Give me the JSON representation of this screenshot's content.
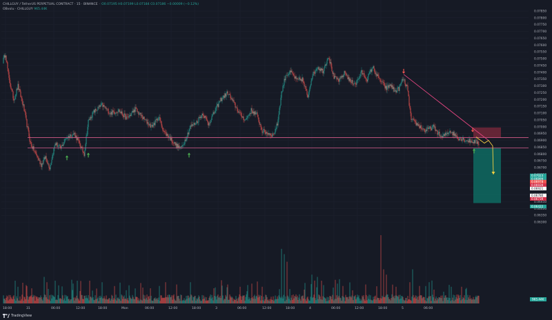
{
  "header": {
    "symbol": "CHILLGUY / TetherUS PERPETUAL CONTRACT · 15 · BINANCE",
    "ohlc": "O0.07195 H0.07199 L0.07184 C0.07186 −0.00009 (−0.12%)",
    "indicator_name": "OBvolu · CHILLGUY",
    "indicator_value": "965.44K"
  },
  "branding": {
    "logo_text": "TradingView"
  },
  "colors": {
    "background": "#161a25",
    "grid": "#1f2330",
    "up": "#26a69a",
    "down": "#ef5350",
    "trend_line": "#e0457f",
    "forecast_arrow": "#f5d142",
    "marker_up": "#4caf50",
    "marker_down": "#ef5350",
    "target_box": "#0e6b61",
    "stop_box": "#a53045",
    "h_line": "#d65a8a",
    "axis_text": "#b2b5be"
  },
  "chart_data": {
    "type": "candlestick",
    "symbol": "CHILLGUYUSDT.P",
    "timeframe": "15",
    "y_range": [
      0.0626,
      0.0786
    ],
    "y_ticks": [
      "0.07850",
      "0.07800",
      "0.07750",
      "0.07700",
      "0.07650",
      "0.07600",
      "0.07550",
      "0.07500",
      "0.07450",
      "0.07400",
      "0.07350",
      "0.07300",
      "0.07250",
      "0.07200",
      "0.07150",
      "0.07100",
      "0.07050",
      "0.07000",
      "0.06950",
      "0.06900",
      "0.06850",
      "0.06800",
      "0.06750",
      "0.06700",
      "0.06650",
      "0.06600",
      "0.06550",
      "0.06500",
      "0.06450",
      "0.06400",
      "0.06350",
      "0.06300"
    ],
    "x_ticks": [
      "18:00",
      "31",
      "06:00",
      "12:00",
      "18:00",
      "Mon",
      "06:00",
      "12:00",
      "18:00",
      "3",
      "06:00",
      "12:00",
      "18:00",
      "4",
      "06:00",
      "12:00",
      "18:00",
      "5",
      "06:00"
    ],
    "price_labels": [
      {
        "text": "0.07023",
        "kind": "last"
      },
      {
        "text": "0.06899",
        "kind": "last2"
      },
      {
        "text": "0.06978",
        "kind": "stop_top"
      },
      {
        "text": "0.06939",
        "kind": "stop"
      },
      {
        "text": "0.06921",
        "kind": "h_line"
      },
      {
        "text": "0.06780",
        "kind": "entry"
      },
      {
        "text": "0.06739",
        "kind": "entry2"
      },
      {
        "text": "0.06422",
        "kind": "target"
      }
    ],
    "volume_label": "965.44K",
    "anchors": [
      [
        0,
        0.0748
      ],
      [
        4,
        0.0754
      ],
      [
        9,
        0.0735
      ],
      [
        16,
        0.072
      ],
      [
        22,
        0.073
      ],
      [
        30,
        0.0715
      ],
      [
        40,
        0.0688
      ],
      [
        48,
        0.068
      ],
      [
        56,
        0.0672
      ],
      [
        62,
        0.0678
      ],
      [
        68,
        0.067
      ],
      [
        76,
        0.0688
      ],
      [
        84,
        0.0684
      ],
      [
        92,
        0.0692
      ],
      [
        104,
        0.0695
      ],
      [
        118,
        0.068
      ],
      [
        124,
        0.0704
      ],
      [
        132,
        0.0711
      ],
      [
        144,
        0.0716
      ],
      [
        156,
        0.071
      ],
      [
        168,
        0.0712
      ],
      [
        180,
        0.0706
      ],
      [
        192,
        0.0713
      ],
      [
        204,
        0.0706
      ],
      [
        216,
        0.07
      ],
      [
        226,
        0.0707
      ],
      [
        234,
        0.0696
      ],
      [
        242,
        0.0692
      ],
      [
        250,
        0.0687
      ],
      [
        258,
        0.0684
      ],
      [
        264,
        0.069
      ],
      [
        272,
        0.07
      ],
      [
        280,
        0.0703
      ],
      [
        290,
        0.071
      ],
      [
        298,
        0.0702
      ],
      [
        306,
        0.071
      ],
      [
        316,
        0.072
      ],
      [
        326,
        0.0725
      ],
      [
        334,
        0.0718
      ],
      [
        344,
        0.0709
      ],
      [
        352,
        0.0705
      ],
      [
        360,
        0.0712
      ],
      [
        368,
        0.0709
      ],
      [
        376,
        0.0697
      ],
      [
        386,
        0.0695
      ],
      [
        392,
        0.0694
      ],
      [
        398,
        0.0702
      ],
      [
        404,
        0.0725
      ],
      [
        410,
        0.0738
      ],
      [
        418,
        0.074
      ],
      [
        426,
        0.0734
      ],
      [
        434,
        0.0735
      ],
      [
        442,
        0.0722
      ],
      [
        448,
        0.0737
      ],
      [
        456,
        0.0744
      ],
      [
        464,
        0.0741
      ],
      [
        472,
        0.0752
      ],
      [
        480,
        0.0736
      ],
      [
        488,
        0.0734
      ],
      [
        496,
        0.074
      ],
      [
        504,
        0.0733
      ],
      [
        512,
        0.0732
      ],
      [
        520,
        0.074
      ],
      [
        528,
        0.0735
      ],
      [
        536,
        0.0744
      ],
      [
        544,
        0.0736
      ],
      [
        550,
        0.0732
      ],
      [
        556,
        0.0728
      ],
      [
        562,
        0.0731
      ],
      [
        568,
        0.0726
      ],
      [
        574,
        0.0728
      ],
      [
        580,
        0.0735
      ],
      [
        586,
        0.0729
      ],
      [
        592,
        0.0705
      ],
      [
        600,
        0.0702
      ],
      [
        612,
        0.0697
      ],
      [
        624,
        0.07
      ],
      [
        636,
        0.0692
      ],
      [
        648,
        0.0697
      ],
      [
        660,
        0.0692
      ],
      [
        672,
        0.069
      ],
      [
        684,
        0.0689
      ],
      [
        690,
        0.0688
      ]
    ],
    "volume_spikes": [
      [
        404,
        0.72
      ],
      [
        408,
        0.65
      ],
      [
        412,
        0.55
      ],
      [
        448,
        0.38
      ],
      [
        456,
        0.35
      ],
      [
        462,
        0.3
      ],
      [
        548,
        0.9
      ],
      [
        552,
        0.45
      ],
      [
        556,
        0.38
      ],
      [
        570,
        0.22
      ],
      [
        594,
        0.45
      ],
      [
        590,
        0.28
      ],
      [
        108,
        0.3
      ],
      [
        60,
        0.35
      ],
      [
        64,
        0.28
      ],
      [
        18,
        0.3
      ],
      [
        22,
        0.22
      ],
      [
        76,
        0.3
      ],
      [
        126,
        0.3
      ],
      [
        144,
        0.28
      ],
      [
        214,
        0.2
      ],
      [
        236,
        0.28
      ],
      [
        252,
        0.25
      ],
      [
        272,
        0.28
      ],
      [
        306,
        0.2
      ],
      [
        326,
        0.25
      ],
      [
        344,
        0.22
      ],
      [
        376,
        0.22
      ],
      [
        488,
        0.32
      ],
      [
        526,
        0.25
      ],
      [
        618,
        0.28
      ],
      [
        650,
        0.22
      ]
    ],
    "annotations": {
      "up_markers_price": [
        {
          "x_candle": 93,
          "price": 0.06775
        },
        {
          "x_candle": 124,
          "price": 0.06795
        },
        {
          "x_candle": 270,
          "price": 0.06795
        },
        {
          "x_candle": 683,
          "price": 0.06825
        }
      ],
      "down_markers_price": [
        {
          "x_candle": 581,
          "price": 0.07405
        },
        {
          "x_candle": 681,
          "price": 0.06975
        }
      ],
      "trend_line": [
        [
          581,
          0.07385
        ],
        [
          704,
          0.069
        ]
      ],
      "support_line_price": 0.06845,
      "resistance_line_price": 0.06921,
      "forecast_path": [
        [
          686,
          0.06925
        ],
        [
          698,
          0.0688
        ],
        [
          704,
          0.069
        ],
        [
          710,
          0.0686
        ],
        [
          711,
          0.0665
        ]
      ]
    }
  }
}
